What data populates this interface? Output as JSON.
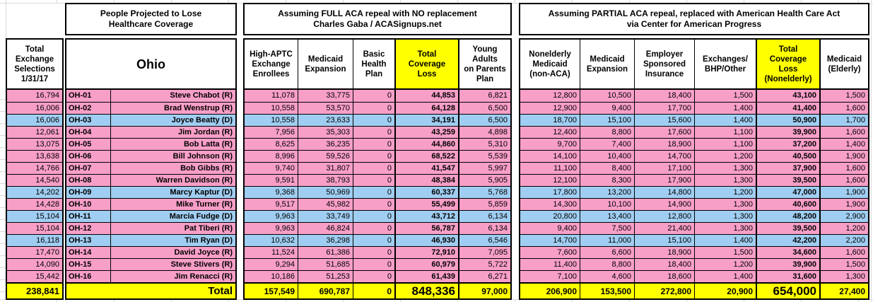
{
  "colors": {
    "republican_row": "#f89fc8",
    "democrat_row": "#a0cef2",
    "highlight_yellow": "#ffff00",
    "gridline": "#d9d9d9"
  },
  "left_col": {
    "header": "Total\nExchange\nSelections\n1/31/17",
    "total": "238,841"
  },
  "district_block": {
    "title": "People Projected to Lose\nHealthcare Coverage",
    "state": "Ohio",
    "total_label": "Total"
  },
  "full_repeal_block": {
    "title": "Assuming FULL ACA repeal with NO replacement\nCharles Gaba / ACASignups.net",
    "columns": [
      "High-APTC\nExchange\nEnrollees",
      "Medicaid\nExpansion",
      "Basic\nHealth\nPlan",
      "Total\nCoverage\nLoss",
      "Young\nAdults\non Parents\nPlan"
    ],
    "totals": [
      "157,549",
      "690,787",
      "0",
      "848,336",
      "97,000"
    ]
  },
  "partial_repeal_block": {
    "title": "Assuming PARTIAL ACA repeal, replaced with American Health Care Act\nvia Center for American Progress",
    "columns": [
      "Nonelderly\nMedicaid\n(non-ACA)",
      "Medicaid\nExpansion",
      "Employer\nSponsored\nInsurance",
      "Exchanges/\nBHP/Other",
      "Total\nCoverage\nLoss\n(Nonelderly)",
      "Medicaid\n(Elderly)"
    ],
    "totals": [
      "206,900",
      "153,500",
      "272,800",
      "20,900",
      "654,000",
      "27,400"
    ]
  },
  "rows": [
    {
      "exchange_selections": "16,794",
      "district": "OH-01",
      "rep": "Steve Chabot (R)",
      "party": "R",
      "full": [
        "11,078",
        "33,775",
        "0",
        "44,853",
        "6,821"
      ],
      "partial": [
        "12,800",
        "10,500",
        "18,400",
        "1,500",
        "43,100",
        "1,500"
      ]
    },
    {
      "exchange_selections": "16,006",
      "district": "OH-02",
      "rep": "Brad Wenstrup (R)",
      "party": "R",
      "full": [
        "10,558",
        "53,570",
        "0",
        "64,128",
        "6,500"
      ],
      "partial": [
        "12,900",
        "9,400",
        "17,700",
        "1,400",
        "41,400",
        "1,600"
      ]
    },
    {
      "exchange_selections": "16,006",
      "district": "OH-03",
      "rep": "Joyce Beatty (D)",
      "party": "D",
      "full": [
        "10,558",
        "23,633",
        "0",
        "34,191",
        "6,500"
      ],
      "partial": [
        "18,700",
        "15,100",
        "15,600",
        "1,400",
        "50,900",
        "1,700"
      ]
    },
    {
      "exchange_selections": "12,061",
      "district": "OH-04",
      "rep": "Jim Jordan (R)",
      "party": "R",
      "full": [
        "7,956",
        "35,303",
        "0",
        "43,259",
        "4,898"
      ],
      "partial": [
        "12,400",
        "8,800",
        "17,600",
        "1,100",
        "39,900",
        "1,600"
      ]
    },
    {
      "exchange_selections": "13,075",
      "district": "OH-05",
      "rep": "Bob Latta (R)",
      "party": "R",
      "full": [
        "8,625",
        "36,235",
        "0",
        "44,860",
        "5,310"
      ],
      "partial": [
        "9,700",
        "7,400",
        "18,900",
        "1,100",
        "37,200",
        "1,400"
      ]
    },
    {
      "exchange_selections": "13,638",
      "district": "OH-06",
      "rep": "Bill Johnson (R)",
      "party": "R",
      "full": [
        "8,996",
        "59,526",
        "0",
        "68,522",
        "5,539"
      ],
      "partial": [
        "14,100",
        "10,400",
        "14,700",
        "1,200",
        "40,500",
        "1,900"
      ]
    },
    {
      "exchange_selections": "14,766",
      "district": "OH-07",
      "rep": "Bob Gibbs (R)",
      "party": "R",
      "full": [
        "9,740",
        "31,807",
        "0",
        "41,547",
        "5,997"
      ],
      "partial": [
        "11,100",
        "8,400",
        "17,100",
        "1,300",
        "37,900",
        "1,600"
      ]
    },
    {
      "exchange_selections": "14,540",
      "district": "OH-08",
      "rep": "Warren Davidson (R)",
      "party": "R",
      "full": [
        "9,591",
        "38,793",
        "0",
        "48,384",
        "5,905"
      ],
      "partial": [
        "12,100",
        "8,300",
        "17,900",
        "1,300",
        "39,500",
        "1,600"
      ]
    },
    {
      "exchange_selections": "14,202",
      "district": "OH-09",
      "rep": "Marcy Kaptur (D)",
      "party": "D",
      "full": [
        "9,368",
        "50,969",
        "0",
        "60,337",
        "5,768"
      ],
      "partial": [
        "17,800",
        "13,200",
        "14,800",
        "1,200",
        "47,000",
        "1,900"
      ]
    },
    {
      "exchange_selections": "14,428",
      "district": "OH-10",
      "rep": "Mike Turner (R)",
      "party": "R",
      "full": [
        "9,517",
        "45,982",
        "0",
        "55,499",
        "5,859"
      ],
      "partial": [
        "14,300",
        "10,100",
        "14,900",
        "1,300",
        "40,600",
        "1,900"
      ]
    },
    {
      "exchange_selections": "15,104",
      "district": "OH-11",
      "rep": "Marcia Fudge (D)",
      "party": "D",
      "full": [
        "9,963",
        "33,749",
        "0",
        "43,712",
        "6,134"
      ],
      "partial": [
        "20,800",
        "13,400",
        "12,800",
        "1,300",
        "48,200",
        "2,900"
      ]
    },
    {
      "exchange_selections": "15,104",
      "district": "OH-12",
      "rep": "Pat Tiberi (R)",
      "party": "R",
      "full": [
        "9,963",
        "46,824",
        "0",
        "56,787",
        "6,134"
      ],
      "partial": [
        "9,400",
        "7,500",
        "21,400",
        "1,300",
        "39,500",
        "1,200"
      ]
    },
    {
      "exchange_selections": "16,118",
      "district": "OH-13",
      "rep": "Tim Ryan (D)",
      "party": "D",
      "full": [
        "10,632",
        "36,298",
        "0",
        "46,930",
        "6,546"
      ],
      "partial": [
        "14,700",
        "11,000",
        "15,100",
        "1,400",
        "42,200",
        "2,200"
      ]
    },
    {
      "exchange_selections": "17,470",
      "district": "OH-14",
      "rep": "David Joyce (R)",
      "party": "R",
      "full": [
        "11,524",
        "61,386",
        "0",
        "72,910",
        "7,095"
      ],
      "partial": [
        "7,600",
        "6,600",
        "18,900",
        "1,500",
        "34,600",
        "1,600"
      ]
    },
    {
      "exchange_selections": "14,090",
      "district": "OH-15",
      "rep": "Steve Stivers (R)",
      "party": "R",
      "full": [
        "9,294",
        "51,685",
        "0",
        "60,979",
        "5,722"
      ],
      "partial": [
        "11,400",
        "8,800",
        "18,400",
        "1,200",
        "39,900",
        "1,500"
      ]
    },
    {
      "exchange_selections": "15,442",
      "district": "OH-16",
      "rep": "Jim Renacci (R)",
      "party": "R",
      "full": [
        "10,186",
        "51,253",
        "0",
        "61,439",
        "6,271"
      ],
      "partial": [
        "7,100",
        "4,600",
        "18,600",
        "1,400",
        "31,600",
        "1,300"
      ]
    }
  ]
}
